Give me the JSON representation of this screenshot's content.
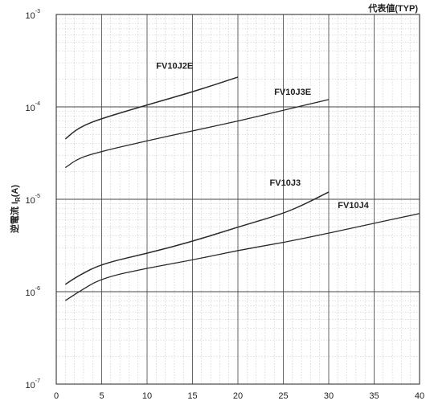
{
  "chart_data": {
    "type": "line",
    "title": "",
    "corner_note": "代表値(TYP)",
    "xlabel": "",
    "ylabel_main": "逆電流 I",
    "ylabel_sub": "R",
    "ylabel_unit": "(A)",
    "xlim": [
      0,
      40
    ],
    "ylim": [
      1e-07,
      0.001
    ],
    "yscale": "log",
    "grid": true,
    "x_ticks": [
      "0",
      "5",
      "10",
      "15",
      "20",
      "25",
      "30",
      "35",
      "40"
    ],
    "y_ticks": [
      {
        "base": "10",
        "exp": "-7"
      },
      {
        "base": "10",
        "exp": "-6"
      },
      {
        "base": "10",
        "exp": "-5"
      },
      {
        "base": "10",
        "exp": "-4"
      },
      {
        "base": "10",
        "exp": "-3"
      }
    ],
    "series": [
      {
        "name": "FV10J2E",
        "x": [
          1,
          2.5,
          5,
          10,
          15,
          20
        ],
        "y": [
          4.5e-05,
          6e-05,
          7.5e-05,
          0.000105,
          0.000145,
          0.00021
        ]
      },
      {
        "name": "FV10J3E",
        "x": [
          1,
          2.5,
          5,
          10,
          15,
          20,
          25,
          30
        ],
        "y": [
          2.2e-05,
          2.8e-05,
          3.3e-05,
          4.3e-05,
          5.5e-05,
          7e-05,
          9.2e-05,
          0.00012
        ]
      },
      {
        "name": "FV10J3",
        "x": [
          1,
          2.5,
          5,
          10,
          15,
          20,
          25,
          27.5,
          30
        ],
        "y": [
          1.2e-06,
          1.5e-06,
          2e-06,
          2.6e-06,
          3.5e-06,
          5e-06,
          7e-06,
          9e-06,
          1.2e-05
        ]
      },
      {
        "name": "FV10J4",
        "x": [
          1,
          2.5,
          5,
          10,
          15,
          20,
          25,
          30,
          35,
          40
        ],
        "y": [
          8e-07,
          1e-06,
          1.4e-06,
          1.8e-06,
          2.2e-06,
          2.8e-06,
          3.4e-06,
          4.3e-06,
          5.5e-06,
          7e-06
        ]
      }
    ]
  }
}
